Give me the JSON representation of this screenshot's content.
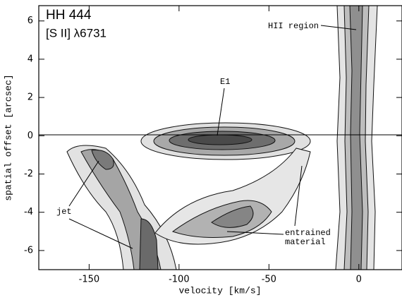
{
  "chart_data": {
    "type": "contour",
    "title": "HH 444",
    "subtitle": "[S II] λ6731",
    "x_label": "velocity [km/s]",
    "y_label": "spatial offset [arcsec]",
    "xlim": [
      -178,
      24
    ],
    "ylim": [
      -7,
      6.8
    ],
    "xticks": [
      -150,
      -100,
      -50,
      0
    ],
    "yticks": [
      -6,
      -4,
      -2,
      0,
      2,
      4,
      6
    ],
    "annotations": [
      "HII region",
      "E1",
      "jet",
      "entrained",
      "material"
    ]
  }
}
